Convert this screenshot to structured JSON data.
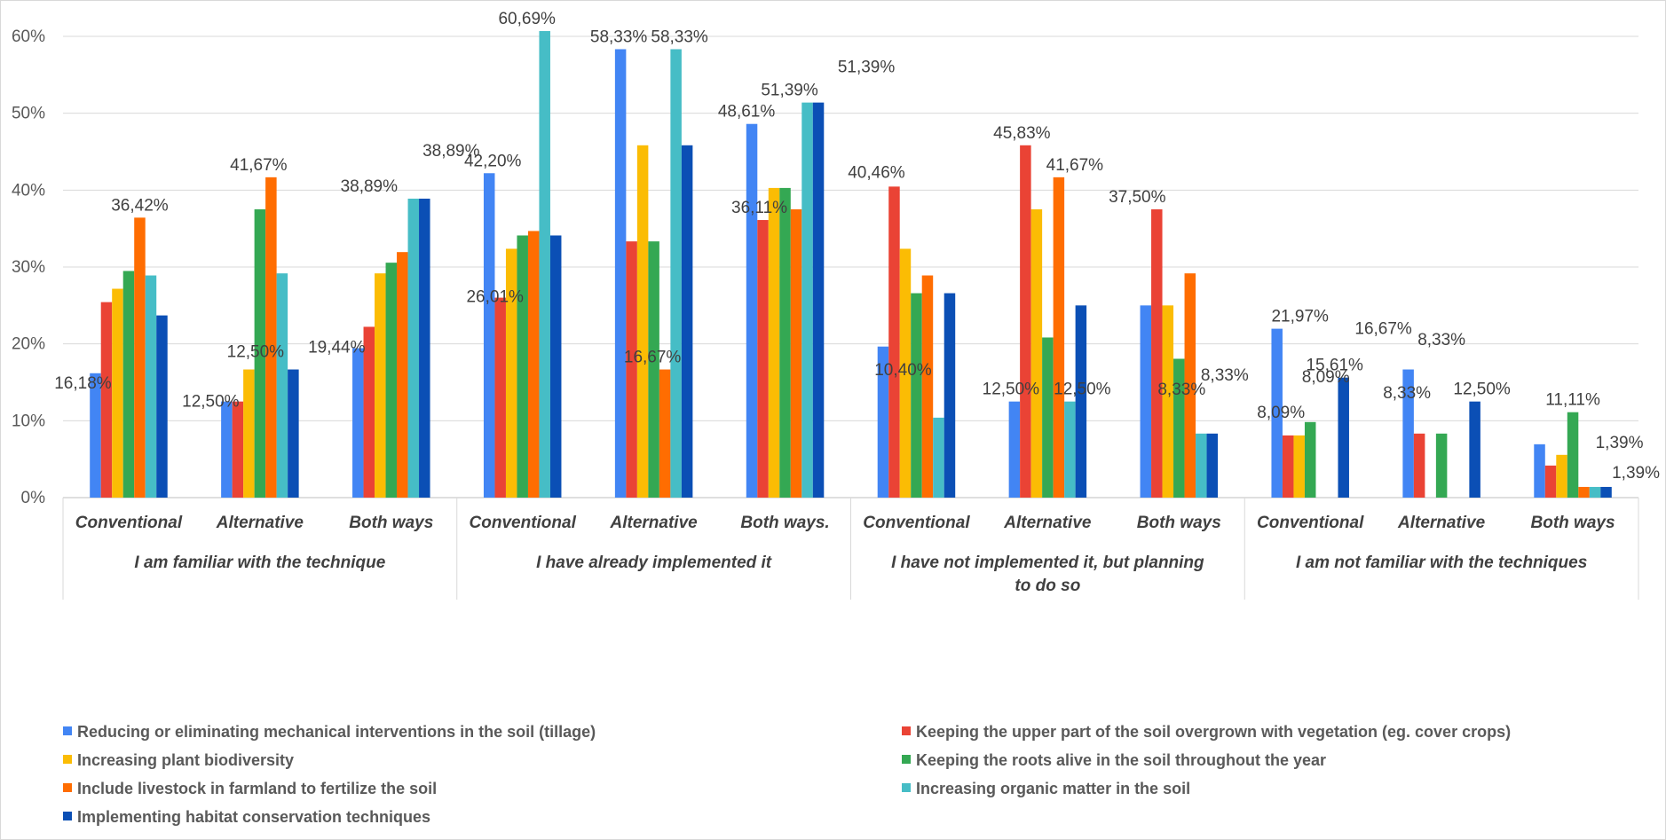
{
  "chart_data": {
    "type": "bar",
    "groups": [
      {
        "label": "I am familiar with the technique",
        "categories": [
          "Conventional",
          "Alternative",
          "Both ways"
        ]
      },
      {
        "label": "I have already implemented it",
        "categories": [
          "Conventional",
          "Alternative",
          "Both ways."
        ]
      },
      {
        "label": "I have not implemented it, but planning to do so",
        "categories": [
          "Conventional",
          "Alternative",
          "Both ways"
        ]
      },
      {
        "label": "I am not familiar with the techniques",
        "categories": [
          "Conventional",
          "Alternative",
          "Both ways"
        ]
      }
    ],
    "ylim": [
      0,
      60
    ],
    "yticks": [
      "0%",
      "10%",
      "20%",
      "30%",
      "40%",
      "50%",
      "60%"
    ],
    "grid": true,
    "legend_position": "bottom",
    "series": [
      {
        "name": "Reducing or eliminating mechanical interventions in the soil (tillage)",
        "color": "#4285f4",
        "values": [
          16.18,
          12.5,
          19.44,
          42.2,
          58.33,
          48.61,
          19.65,
          12.5,
          25.0,
          21.97,
          16.67,
          6.94
        ]
      },
      {
        "name": "Keeping the upper part of the soil overgrown with vegetation (eg. cover crops)",
        "color": "#ea4335",
        "values": [
          25.43,
          12.5,
          22.22,
          26.01,
          33.33,
          36.11,
          40.46,
          45.83,
          37.5,
          8.09,
          8.33,
          4.17
        ]
      },
      {
        "name": "Increasing plant biodiversity",
        "color": "#fbbc04",
        "values": [
          27.17,
          16.67,
          29.17,
          32.37,
          45.83,
          40.28,
          32.37,
          37.5,
          25.0,
          8.09,
          0,
          5.56
        ]
      },
      {
        "name": "Keeping the roots alive in the soil throughout the year",
        "color": "#34a853",
        "values": [
          29.48,
          37.5,
          30.56,
          34.1,
          33.33,
          40.28,
          26.59,
          20.83,
          18.06,
          9.83,
          8.33,
          11.11
        ]
      },
      {
        "name": "Include livestock in farmland to fertilize the soil",
        "color": "#ff6d01",
        "values": [
          36.42,
          41.67,
          31.94,
          34.68,
          16.67,
          37.5,
          28.9,
          41.67,
          29.17,
          0,
          0,
          1.39
        ]
      },
      {
        "name": "Increasing organic matter in the soil",
        "color": "#46bdc6",
        "values": [
          28.9,
          29.17,
          38.89,
          60.69,
          58.33,
          51.39,
          10.4,
          12.5,
          8.33,
          0,
          0,
          1.39
        ]
      },
      {
        "name": "Implementing habitat conservation techniques",
        "color": "#0b4fb5",
        "values": [
          23.7,
          16.67,
          38.89,
          34.1,
          45.83,
          51.39,
          26.59,
          25.0,
          8.33,
          15.61,
          12.5,
          1.39
        ]
      }
    ],
    "data_labels": [
      {
        "text": "16,18%",
        "x": 0,
        "s": 0
      },
      {
        "text": "36,42%",
        "x": 0,
        "s": 4
      },
      {
        "text": "12,50%",
        "x": 1,
        "s": 0
      },
      {
        "text": "12,50%",
        "x": 1,
        "s": 1
      },
      {
        "text": "41,67%",
        "x": 1,
        "s": 4
      },
      {
        "text": "19,44%",
        "x": 2,
        "s": 0
      },
      {
        "text": "38,89%",
        "x": 2,
        "s": 5
      },
      {
        "text": "38,89%",
        "x": 2,
        "s": 6
      },
      {
        "text": "42,20%",
        "x": 3,
        "s": 0
      },
      {
        "text": "26,01%",
        "x": 3,
        "s": 1
      },
      {
        "text": "60,69%",
        "x": 3,
        "s": 5
      },
      {
        "text": "58,33%",
        "x": 4,
        "s": 0
      },
      {
        "text": "16,67%",
        "x": 4,
        "s": 4
      },
      {
        "text": "58,33%",
        "x": 4,
        "s": 5
      },
      {
        "text": "48,61%",
        "x": 5,
        "s": 0
      },
      {
        "text": "36,11%",
        "x": 5,
        "s": 1
      },
      {
        "text": "51,39%",
        "x": 5,
        "s": 5
      },
      {
        "text": "51,39%",
        "x": 5,
        "s": 6
      },
      {
        "text": "40,46%",
        "x": 6,
        "s": 1
      },
      {
        "text": "10,40%",
        "x": 6,
        "s": 5
      },
      {
        "text": "12,50%",
        "x": 7,
        "s": 0
      },
      {
        "text": "45,83%",
        "x": 7,
        "s": 1
      },
      {
        "text": "41,67%",
        "x": 7,
        "s": 4
      },
      {
        "text": "12,50%",
        "x": 7,
        "s": 5
      },
      {
        "text": "37,50%",
        "x": 8,
        "s": 1
      },
      {
        "text": "8,33%",
        "x": 8,
        "s": 5
      },
      {
        "text": "8,33%",
        "x": 8,
        "s": 6
      },
      {
        "text": "21,97%",
        "x": 9,
        "s": 0
      },
      {
        "text": "8,09%",
        "x": 9,
        "s": 1
      },
      {
        "text": "8,09%",
        "x": 9,
        "s": 2
      },
      {
        "text": "15,61%",
        "x": 9,
        "s": 6
      },
      {
        "text": "16,67%",
        "x": 10,
        "s": 0
      },
      {
        "text": "8,33%",
        "x": 10,
        "s": 1
      },
      {
        "text": "8,33%",
        "x": 10,
        "s": 3
      },
      {
        "text": "12,50%",
        "x": 10,
        "s": 6
      },
      {
        "text": "11,11%",
        "x": 11,
        "s": 3
      },
      {
        "text": "1,39%",
        "x": 11,
        "s": 4
      },
      {
        "text": "1,39%",
        "x": 11,
        "s": 5
      }
    ]
  }
}
